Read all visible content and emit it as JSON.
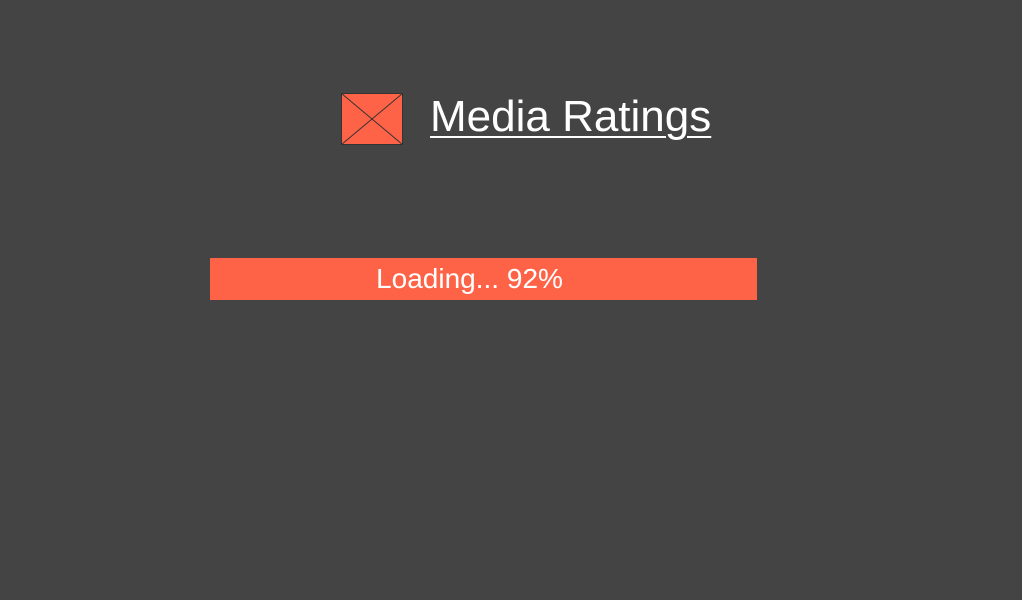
{
  "app": {
    "title": "Media Ratings",
    "logo_icon": "image-placeholder-icon"
  },
  "loading": {
    "label": "Loading... 92%",
    "progress_percent": 92
  },
  "colors": {
    "background": "#444444",
    "accent": "#FF6347",
    "text": "#FFFFFF"
  }
}
